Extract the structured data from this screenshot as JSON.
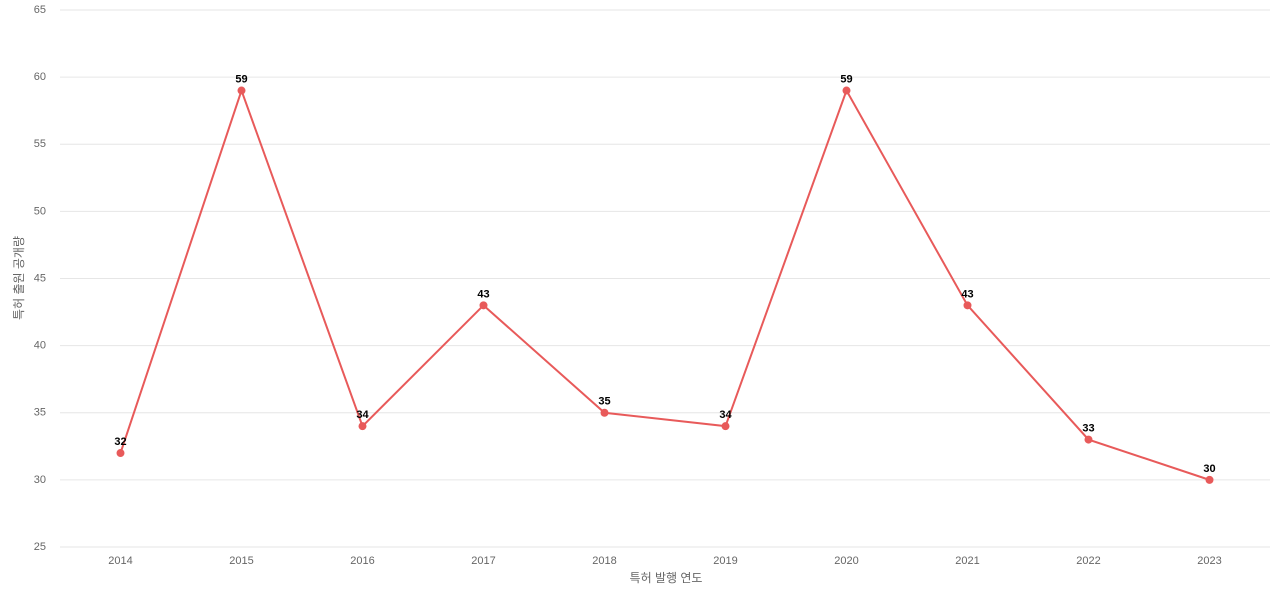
{
  "chart_data": {
    "type": "line",
    "x_label": "특허 발행 연도",
    "y_label": "특허 출원 공개량",
    "categories": [
      "2014",
      "2015",
      "2016",
      "2017",
      "2018",
      "2019",
      "2020",
      "2021",
      "2022",
      "2023"
    ],
    "values": [
      32,
      59,
      34,
      43,
      35,
      34,
      59,
      43,
      33,
      30
    ],
    "color": "#e85a5a",
    "ylim": [
      25,
      65
    ],
    "yticks": [
      25,
      30,
      35,
      40,
      45,
      50,
      55,
      60,
      65
    ],
    "grid": true
  }
}
